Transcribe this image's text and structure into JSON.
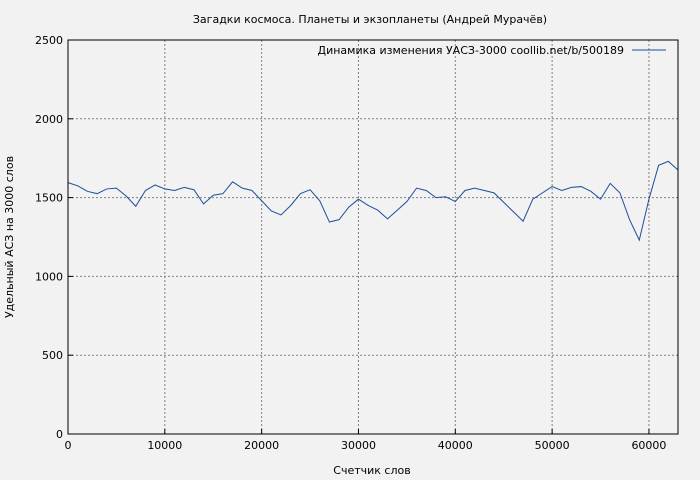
{
  "chart_data": {
    "type": "line",
    "title": "Загадки космоса. Планеты и экзопланеты (Андрей Мурачёв)",
    "xlabel": "Счетчик слов",
    "ylabel": "Удельный АСЗ на 3000 слов",
    "xlim": [
      0,
      63000
    ],
    "ylim": [
      0,
      2500
    ],
    "x_ticks": [
      0,
      10000,
      20000,
      30000,
      40000,
      50000,
      60000
    ],
    "y_ticks": [
      0,
      500,
      1000,
      1500,
      2000,
      2500
    ],
    "grid": true,
    "legend_position": "top-right",
    "series": [
      {
        "name": "Динамика изменения УАСЗ-3000  coollib.net/b/500189",
        "color": "#1f4e9a",
        "x": [
          0,
          1000,
          2000,
          3000,
          4000,
          5000,
          6000,
          7000,
          8000,
          9000,
          10000,
          11000,
          12000,
          13000,
          14000,
          15000,
          16000,
          17000,
          18000,
          19000,
          20000,
          21000,
          22000,
          23000,
          24000,
          25000,
          26000,
          27000,
          28000,
          29000,
          30000,
          31000,
          32000,
          33000,
          34000,
          35000,
          36000,
          37000,
          38000,
          39000,
          40000,
          41000,
          42000,
          43000,
          44000,
          45000,
          46000,
          47000,
          48000,
          49000,
          50000,
          51000,
          52000,
          53000,
          54000,
          55000,
          56000,
          57000,
          58000,
          59000,
          60000,
          61000,
          62000,
          63000
        ],
        "y": [
          1595,
          1575,
          1540,
          1525,
          1555,
          1560,
          1510,
          1445,
          1545,
          1580,
          1555,
          1545,
          1565,
          1550,
          1460,
          1515,
          1525,
          1600,
          1560,
          1545,
          1480,
          1415,
          1390,
          1450,
          1525,
          1550,
          1480,
          1345,
          1360,
          1440,
          1490,
          1450,
          1420,
          1365,
          1420,
          1475,
          1560,
          1545,
          1500,
          1505,
          1475,
          1545,
          1560,
          1545,
          1530,
          1470,
          1410,
          1350,
          1490,
          1530,
          1570,
          1545,
          1565,
          1570,
          1540,
          1490,
          1590,
          1530,
          1360,
          1230,
          1490,
          1705,
          1730,
          1675
        ]
      }
    ]
  }
}
